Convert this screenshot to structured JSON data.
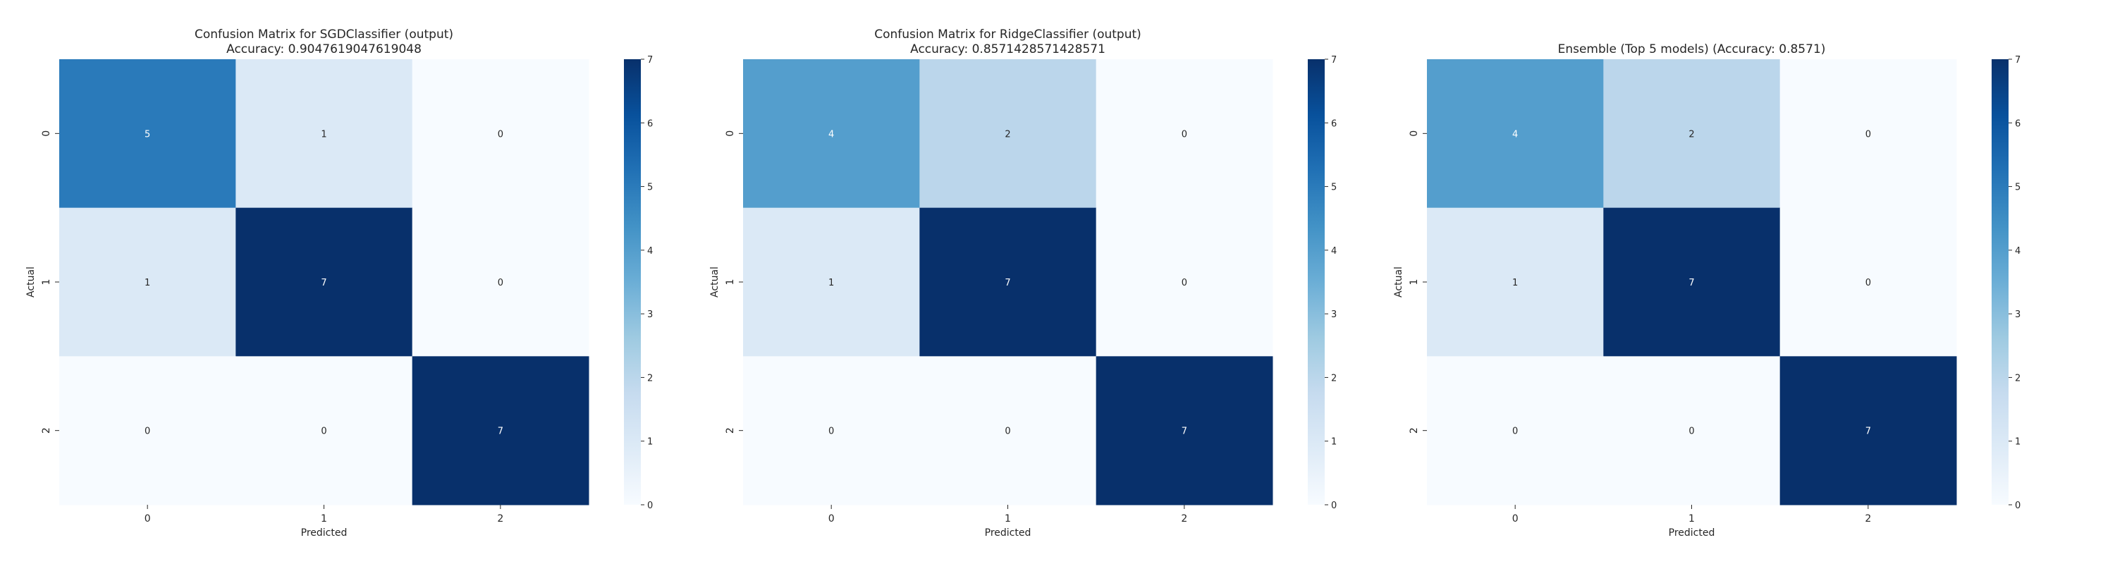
{
  "chart_data": [
    {
      "type": "heatmap",
      "title": "Confusion Matrix for SGDClassifier (output)\nAccuracy: 0.9047619047619048",
      "xlabel": "Predicted",
      "ylabel": "Actual",
      "x_categories": [
        "0",
        "1",
        "2"
      ],
      "y_categories": [
        "0",
        "1",
        "2"
      ],
      "values": [
        [
          5,
          1,
          0
        ],
        [
          1,
          7,
          0
        ],
        [
          0,
          0,
          7
        ]
      ],
      "colorbar": {
        "range": [
          0,
          7
        ],
        "ticks": [
          "0",
          "1",
          "2",
          "3",
          "4",
          "5",
          "6",
          "7"
        ],
        "colormap": "Blues"
      }
    },
    {
      "type": "heatmap",
      "title": "Confusion Matrix for RidgeClassifier (output)\nAccuracy: 0.8571428571428571",
      "xlabel": "Predicted",
      "ylabel": "Actual",
      "x_categories": [
        "0",
        "1",
        "2"
      ],
      "y_categories": [
        "0",
        "1",
        "2"
      ],
      "values": [
        [
          4,
          2,
          0
        ],
        [
          1,
          7,
          0
        ],
        [
          0,
          0,
          7
        ]
      ],
      "colorbar": {
        "range": [
          0,
          7
        ],
        "ticks": [
          "0",
          "1",
          "2",
          "3",
          "4",
          "5",
          "6",
          "7"
        ],
        "colormap": "Blues"
      }
    },
    {
      "type": "heatmap",
      "title": "Ensemble (Top 5 models) (Accuracy: 0.8571)",
      "xlabel": "Predicted",
      "ylabel": "Actual",
      "x_categories": [
        "0",
        "1",
        "2"
      ],
      "y_categories": [
        "0",
        "1",
        "2"
      ],
      "values": [
        [
          4,
          2,
          0
        ],
        [
          1,
          7,
          0
        ],
        [
          0,
          0,
          7
        ]
      ],
      "colorbar": {
        "range": [
          0,
          7
        ],
        "ticks": [
          "0",
          "1",
          "2",
          "3",
          "4",
          "5",
          "6",
          "7"
        ],
        "colormap": "Blues"
      }
    }
  ]
}
